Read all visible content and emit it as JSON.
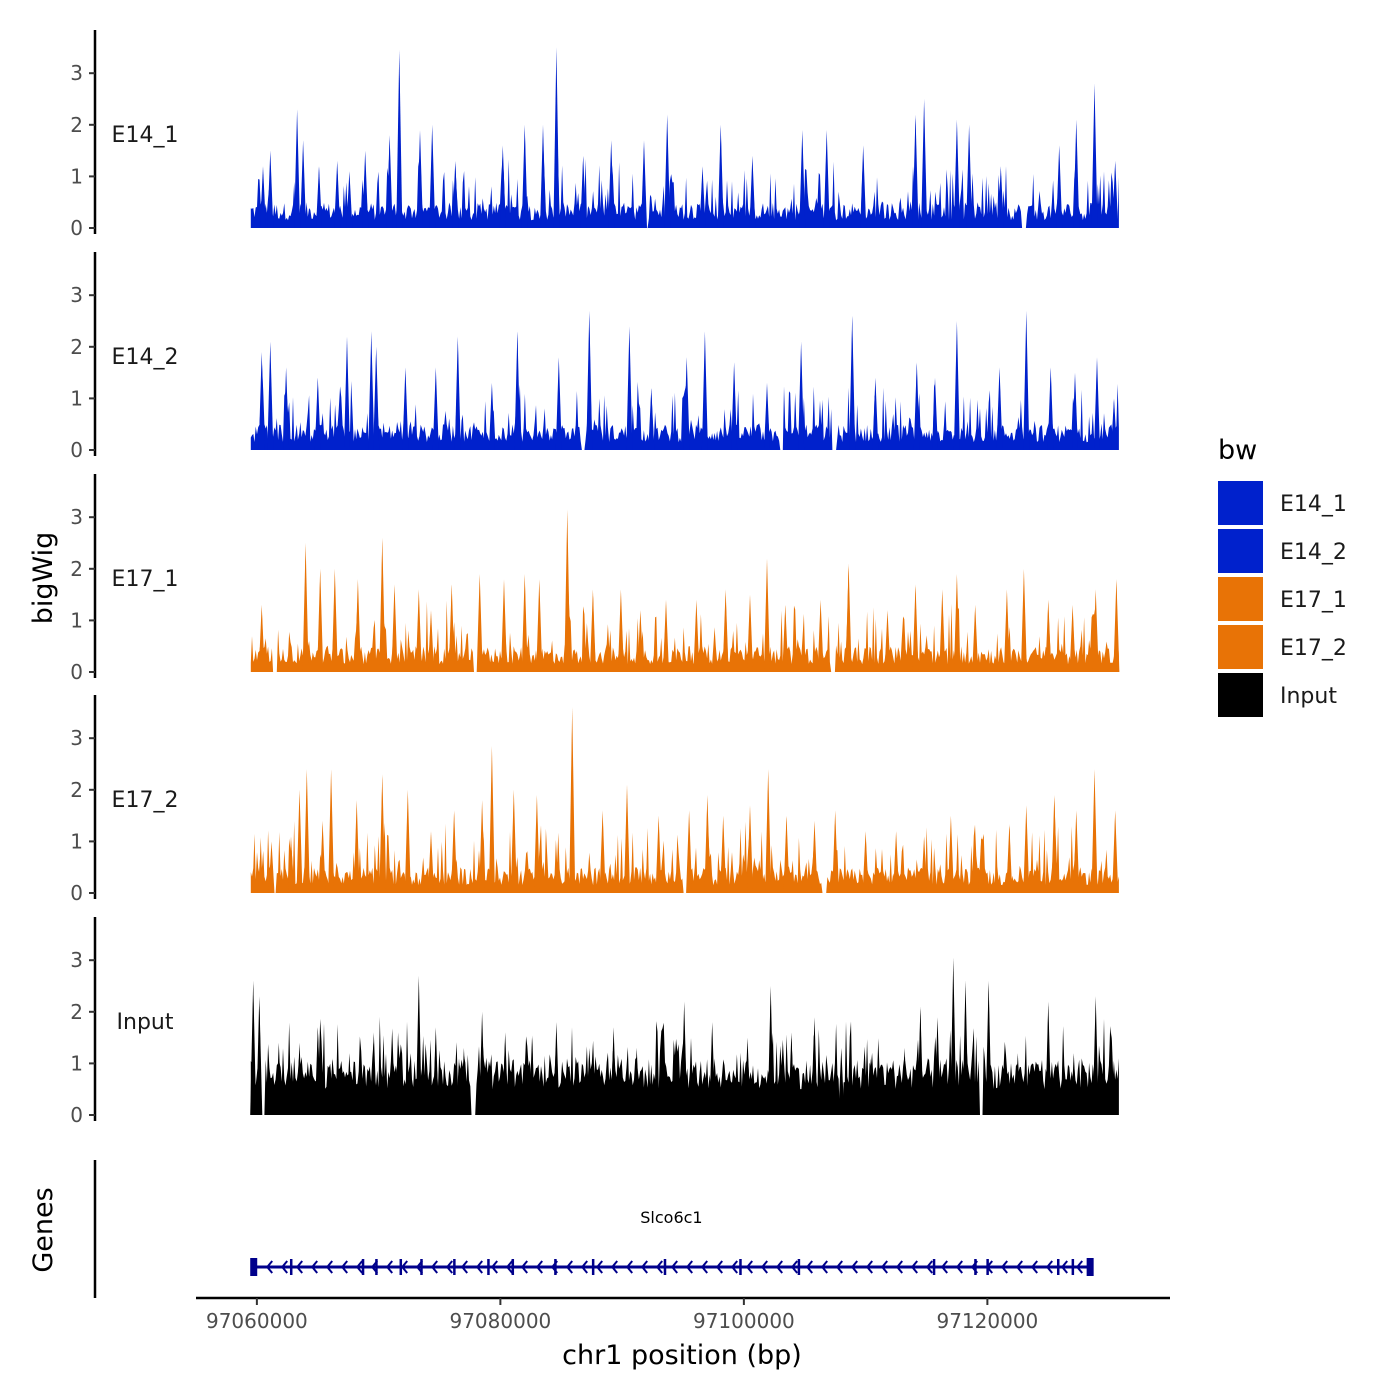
{
  "chart_data": {
    "type": "area",
    "xlabel": "chr1 position (bp)",
    "ylabel": "bigWig",
    "genes_label": "Genes",
    "x_range": [
      97055000,
      97135000
    ],
    "data_x_range": [
      97059500,
      97130800
    ],
    "x_ticks": [
      97060000,
      97080000,
      97100000,
      97120000
    ],
    "x_tick_labels": [
      "97060000",
      "97080000",
      "97100000",
      "97120000"
    ],
    "y_range": [
      0,
      3.8
    ],
    "y_ticks": [
      0,
      1,
      2,
      3
    ],
    "y_tick_labels": [
      "0",
      "1",
      "2",
      "3"
    ],
    "legend": {
      "title": "bw",
      "entries": [
        {
          "label": "E14_1",
          "color": "#0021cc"
        },
        {
          "label": "E14_2",
          "color": "#0021cc"
        },
        {
          "label": "E17_1",
          "color": "#e87306"
        },
        {
          "label": "E17_2",
          "color": "#e87306"
        },
        {
          "label": "Input",
          "color": "#000000"
        }
      ]
    },
    "series": [
      {
        "name": "E14_1",
        "color": "#0021cc",
        "peaks": [
          [
            97060500,
            1.2
          ],
          [
            97061100,
            1.5
          ],
          [
            97063300,
            2.3
          ],
          [
            97063800,
            1.7
          ],
          [
            97065100,
            1.2
          ],
          [
            97066600,
            1.3
          ],
          [
            97067600,
            1.1
          ],
          [
            97068900,
            1.5
          ],
          [
            97070900,
            1.8
          ],
          [
            97071700,
            3.45
          ],
          [
            97073400,
            1.9
          ],
          [
            97074400,
            2.0
          ],
          [
            97076300,
            1.3
          ],
          [
            97080200,
            1.6
          ],
          [
            97082000,
            2.0
          ],
          [
            97083500,
            2.0
          ],
          [
            97084600,
            3.5
          ],
          [
            97086800,
            1.4
          ],
          [
            97089100,
            1.7
          ],
          [
            97091800,
            1.7
          ],
          [
            97093700,
            2.2
          ],
          [
            97096600,
            1.2
          ],
          [
            97098100,
            2.0
          ],
          [
            97100700,
            1.4
          ],
          [
            97104800,
            1.9
          ],
          [
            97106800,
            1.9
          ],
          [
            97109800,
            1.6
          ],
          [
            97114100,
            2.2
          ],
          [
            97114800,
            2.5
          ],
          [
            97117500,
            2.1
          ],
          [
            97118500,
            2.0
          ],
          [
            97121100,
            1.2
          ],
          [
            97125900,
            1.6
          ],
          [
            97127300,
            2.1
          ],
          [
            97128800,
            2.8
          ],
          [
            97130500,
            1.3
          ]
        ],
        "zeros": [
          97092000,
          97123000
        ]
      },
      {
        "name": "E14_2",
        "color": "#0021cc",
        "peaks": [
          [
            97060400,
            1.9
          ],
          [
            97061100,
            2.1
          ],
          [
            97062400,
            1.6
          ],
          [
            97065000,
            1.4
          ],
          [
            97067400,
            2.2
          ],
          [
            97069400,
            2.3
          ],
          [
            97069800,
            2.0
          ],
          [
            97072200,
            1.6
          ],
          [
            97074700,
            1.6
          ],
          [
            97076500,
            2.2
          ],
          [
            97079300,
            1.3
          ],
          [
            97081400,
            2.3
          ],
          [
            97084800,
            1.8
          ],
          [
            97087300,
            2.7
          ],
          [
            97090600,
            2.4
          ],
          [
            97092400,
            1.2
          ],
          [
            97095300,
            1.8
          ],
          [
            97096800,
            2.3
          ],
          [
            97099200,
            1.7
          ],
          [
            97101900,
            1.3
          ],
          [
            97104700,
            2.1
          ],
          [
            97108900,
            2.6
          ],
          [
            97110800,
            1.4
          ],
          [
            97114200,
            1.7
          ],
          [
            97115700,
            1.4
          ],
          [
            97117500,
            2.5
          ],
          [
            97121000,
            1.6
          ],
          [
            97123200,
            2.7
          ],
          [
            97125200,
            1.6
          ],
          [
            97127200,
            1.5
          ],
          [
            97129000,
            1.8
          ],
          [
            97130400,
            1.0
          ]
        ],
        "zeros": [
          97086800,
          97103100,
          97107400
        ]
      },
      {
        "name": "E17_1",
        "color": "#e87306",
        "peaks": [
          [
            97060400,
            1.3
          ],
          [
            97064000,
            2.5
          ],
          [
            97065200,
            2.0
          ],
          [
            97066400,
            2.0
          ],
          [
            97068300,
            1.8
          ],
          [
            97070300,
            2.6
          ],
          [
            97071300,
            1.7
          ],
          [
            97073300,
            1.6
          ],
          [
            97074300,
            1.2
          ],
          [
            97076000,
            1.7
          ],
          [
            97078300,
            1.9
          ],
          [
            97080300,
            1.8
          ],
          [
            97082000,
            1.9
          ],
          [
            97083200,
            1.8
          ],
          [
            97085500,
            3.15
          ],
          [
            97087600,
            1.6
          ],
          [
            97089900,
            1.6
          ],
          [
            97091500,
            1.2
          ],
          [
            97093600,
            1.4
          ],
          [
            97096100,
            1.4
          ],
          [
            97098500,
            1.6
          ],
          [
            97100500,
            1.5
          ],
          [
            97101900,
            2.2
          ],
          [
            97103400,
            1.3
          ],
          [
            97106300,
            1.4
          ],
          [
            97108600,
            2.1
          ],
          [
            97111800,
            1.2
          ],
          [
            97114100,
            1.7
          ],
          [
            97116300,
            1.6
          ],
          [
            97117500,
            1.9
          ],
          [
            97119000,
            1.3
          ],
          [
            97121600,
            1.6
          ],
          [
            97123000,
            2.0
          ],
          [
            97125000,
            1.4
          ],
          [
            97127000,
            1.3
          ],
          [
            97128900,
            1.6
          ],
          [
            97130600,
            1.8
          ]
        ],
        "zeros": [
          97061500,
          97078000,
          97107300
        ]
      },
      {
        "name": "E17_2",
        "color": "#e87306",
        "peaks": [
          [
            97060300,
            0.8
          ],
          [
            97061200,
            1.0
          ],
          [
            97062800,
            1.1
          ],
          [
            97063500,
            2.0
          ],
          [
            97064100,
            2.4
          ],
          [
            97065400,
            1.4
          ],
          [
            97066100,
            2.4
          ],
          [
            97068200,
            1.8
          ],
          [
            97070300,
            2.3
          ],
          [
            97072400,
            2.0
          ],
          [
            97074300,
            1.2
          ],
          [
            97076200,
            1.6
          ],
          [
            97078500,
            1.8
          ],
          [
            97079300,
            2.85
          ],
          [
            97081100,
            2.0
          ],
          [
            97083000,
            1.9
          ],
          [
            97085900,
            3.6
          ],
          [
            97088400,
            1.6
          ],
          [
            97090400,
            2.1
          ],
          [
            97093000,
            1.5
          ],
          [
            97095500,
            1.6
          ],
          [
            97097000,
            1.9
          ],
          [
            97098300,
            1.5
          ],
          [
            97100500,
            1.7
          ],
          [
            97102000,
            2.4
          ],
          [
            97103500,
            1.5
          ],
          [
            97105800,
            1.4
          ],
          [
            97107500,
            1.6
          ],
          [
            97110000,
            1.2
          ],
          [
            97112500,
            1.2
          ],
          [
            97114800,
            1.1
          ],
          [
            97117000,
            1.5
          ],
          [
            97119500,
            1.1
          ],
          [
            97121800,
            1.3
          ],
          [
            97123200,
            1.7
          ],
          [
            97125500,
            1.9
          ],
          [
            97127300,
            1.6
          ],
          [
            97128800,
            2.4
          ],
          [
            97130500,
            1.6
          ]
        ],
        "zeros": [
          97061400,
          97095200,
          97106600
        ]
      },
      {
        "name": "Input",
        "color": "#000000",
        "peaks": [
          [
            97059700,
            2.6
          ],
          [
            97060200,
            2.3
          ],
          [
            97061800,
            1.4
          ],
          [
            97063500,
            1.4
          ],
          [
            97065000,
            1.7
          ],
          [
            97066200,
            1.1
          ],
          [
            97067600,
            1.2
          ],
          [
            97069600,
            1.6
          ],
          [
            97071600,
            1.6
          ],
          [
            97073300,
            2.7
          ],
          [
            97074700,
            1.7
          ],
          [
            97076600,
            1.1
          ],
          [
            97077000,
            1.3
          ],
          [
            97078500,
            2.0
          ],
          [
            97080400,
            1.6
          ],
          [
            97082600,
            1.5
          ],
          [
            97084600,
            1.8
          ],
          [
            97087300,
            1.3
          ],
          [
            97089300,
            1.7
          ],
          [
            97091200,
            1.3
          ],
          [
            97093400,
            1.0
          ],
          [
            97095100,
            2.2
          ],
          [
            97097400,
            1.8
          ],
          [
            97100300,
            1.5
          ],
          [
            97102200,
            2.5
          ],
          [
            97103900,
            1.6
          ],
          [
            97105800,
            1.9
          ],
          [
            97108000,
            1.3
          ],
          [
            97110400,
            1.1
          ],
          [
            97113200,
            1.3
          ],
          [
            97114500,
            2.1
          ],
          [
            97115900,
            1.9
          ],
          [
            97117200,
            3.05
          ],
          [
            97118200,
            2.6
          ],
          [
            97120100,
            2.6
          ],
          [
            97122500,
            1.2
          ],
          [
            97125000,
            2.2
          ],
          [
            97127100,
            1.2
          ],
          [
            97128900,
            2.3
          ],
          [
            97130200,
            1.6
          ]
        ],
        "zeros": [
          97060500,
          97077800,
          97108000,
          97119500
        ]
      }
    ],
    "genes": [
      {
        "name": "Slco6c1",
        "start": 97059700,
        "end": 97128400,
        "strand": "-",
        "color": "#00008b",
        "exons": [
          97062800,
          97068700,
          97069800,
          97071800,
          97073500,
          97076200,
          97079000,
          97081000,
          97084500,
          97087600,
          97093500,
          97099700,
          97104500,
          97115600,
          97119000,
          97120000,
          97125800,
          97127000
        ]
      }
    ]
  }
}
